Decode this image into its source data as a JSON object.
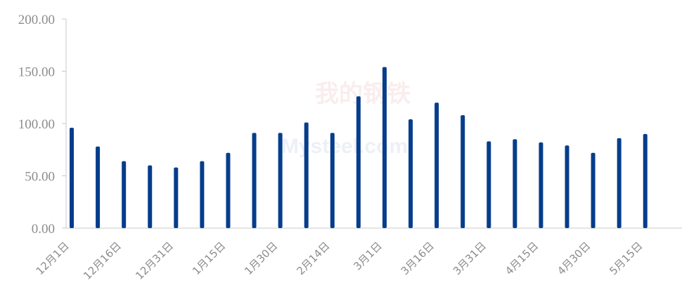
{
  "watermark": {
    "chinese": "我的钢铁",
    "english": "Mysteel.com"
  },
  "chart_data": {
    "type": "bar",
    "ylim": [
      0,
      200
    ],
    "yticks": [
      "0.00",
      "50.00",
      "100.00",
      "150.00",
      "200.00"
    ],
    "xtick_labels": [
      "12月1日",
      "12月16日",
      "12月31日",
      "1月15日",
      "1月30日",
      "2月14日",
      "3月1日",
      "3月16日",
      "3月31日",
      "4月15日",
      "4月30日",
      "5月15日"
    ],
    "bar_color": "#063d8c",
    "axis_color": "#c8c8c8",
    "grid": false,
    "legend": "none",
    "values": [
      96,
      78,
      64,
      60,
      58,
      64,
      72,
      91,
      91,
      101,
      91,
      126,
      154,
      104,
      120,
      108,
      83,
      85,
      82,
      79,
      72,
      86,
      90
    ]
  }
}
